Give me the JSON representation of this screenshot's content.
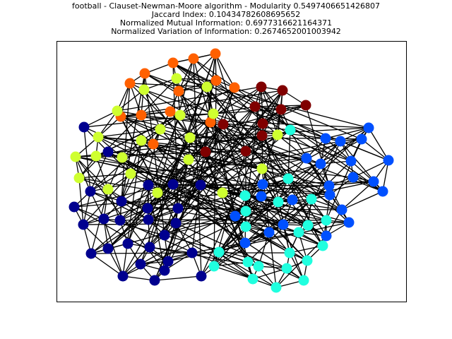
{
  "figure": {
    "title_lines": [
      "football - Clauset-Newman-Moore algorithm - Modularity 0.5497406651426807",
      "Jaccard Index: 0.10434782608695652",
      "Normalized Mutual Information: 0.6977316621164371",
      "Normalized Variation of Information: 0.2674652001003942"
    ]
  },
  "community_colors": {
    "navy": "#00008f",
    "blue": "#0050ff",
    "cyan": "#20ffdf",
    "lime": "#cfff30",
    "orange": "#ff6000",
    "maroon": "#800000"
  }
}
